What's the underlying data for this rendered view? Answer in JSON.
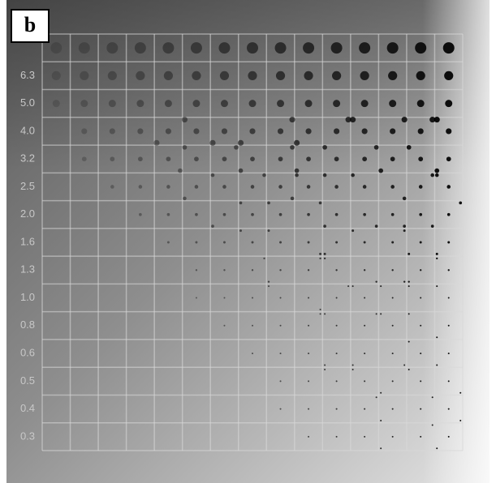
{
  "panel_label": "b",
  "row_labels": [
    "6.3",
    "5.0",
    "4.0",
    "3.2",
    "2.5",
    "2.0",
    "1.6",
    "1.3",
    "1.0",
    "0.8",
    "0.6",
    "0.5",
    "0.4",
    "0.3"
  ]
}
